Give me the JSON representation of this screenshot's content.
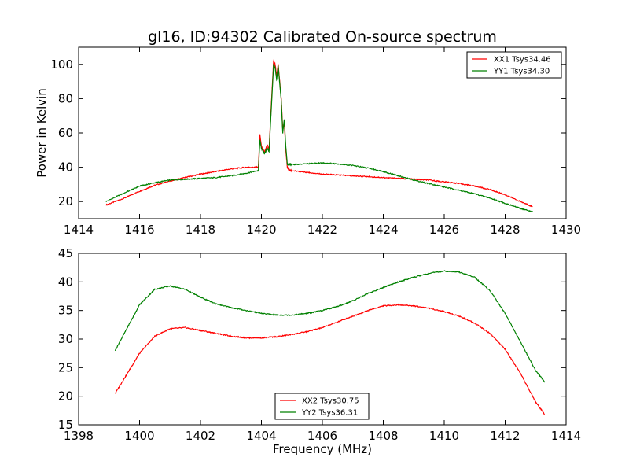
{
  "chart_data": [
    {
      "type": "line",
      "title": "gl16, ID:94302 Calibrated On-source spectrum",
      "xlabel": "",
      "ylabel": "Power in Kelvin",
      "xlim": [
        1414,
        1430
      ],
      "ylim": [
        10,
        110
      ],
      "xticks": [
        "1414",
        "1416",
        "1418",
        "1420",
        "1422",
        "1424",
        "1426",
        "1428",
        "1430"
      ],
      "yticks": [
        "20",
        "40",
        "60",
        "80",
        "100"
      ],
      "legend_position": "upper right",
      "series": [
        {
          "name": "XX1 Tsys34.46",
          "color": "#ff0000",
          "x": [
            1414.9,
            1415.5,
            1416,
            1416.5,
            1417,
            1417.5,
            1418,
            1418.5,
            1419,
            1419.5,
            1419.9,
            1419.95,
            1420.0,
            1420.1,
            1420.2,
            1420.25,
            1420.3,
            1420.4,
            1420.45,
            1420.5,
            1420.55,
            1420.6,
            1420.65,
            1420.7,
            1420.75,
            1420.8,
            1420.85,
            1420.9,
            1421,
            1421.5,
            1422,
            1422.5,
            1423,
            1423.5,
            1424,
            1424.5,
            1425,
            1425.5,
            1426,
            1426.5,
            1427,
            1427.5,
            1428,
            1428.5,
            1428.9
          ],
          "y": [
            18,
            22,
            26,
            29.5,
            32,
            34,
            36,
            37.5,
            39,
            40,
            40,
            59,
            52,
            49,
            53,
            50,
            68,
            102,
            100,
            93,
            100,
            90,
            80,
            62,
            66,
            50,
            40,
            38.5,
            38,
            37,
            36,
            35.5,
            35,
            34.5,
            34,
            33.5,
            33,
            32.5,
            31.5,
            30.5,
            29,
            27,
            24,
            20,
            17
          ]
        },
        {
          "name": "YY1 Tsys34.30",
          "color": "#008000",
          "x": [
            1414.9,
            1415.5,
            1416,
            1416.5,
            1417,
            1417.5,
            1418,
            1418.5,
            1419,
            1419.5,
            1419.9,
            1419.95,
            1420.0,
            1420.1,
            1420.2,
            1420.25,
            1420.3,
            1420.4,
            1420.45,
            1420.5,
            1420.55,
            1420.6,
            1420.65,
            1420.7,
            1420.75,
            1420.8,
            1420.85,
            1420.9,
            1421,
            1421.5,
            1422,
            1422.5,
            1423,
            1423.5,
            1424,
            1424.5,
            1425,
            1425.5,
            1426,
            1426.5,
            1427,
            1427.5,
            1428,
            1428.5,
            1428.9
          ],
          "y": [
            20,
            25,
            29,
            31,
            32.5,
            33,
            33.5,
            34,
            35,
            36.5,
            38,
            56,
            51,
            48,
            51,
            49,
            66,
            100,
            98,
            91,
            99,
            89,
            79,
            60,
            68,
            52,
            42,
            41.5,
            41.5,
            42,
            42.5,
            42,
            41,
            39.5,
            37.5,
            35,
            32.5,
            30.5,
            28.5,
            26.5,
            24.5,
            22,
            19,
            16,
            14
          ]
        }
      ]
    },
    {
      "type": "line",
      "title": "",
      "xlabel": "Frequency (MHz)",
      "ylabel": "",
      "xlim": [
        1398,
        1414
      ],
      "ylim": [
        15,
        45
      ],
      "xticks": [
        "1398",
        "1400",
        "1402",
        "1404",
        "1406",
        "1408",
        "1410",
        "1412",
        "1414"
      ],
      "yticks": [
        "15",
        "20",
        "25",
        "30",
        "35",
        "40",
        "45"
      ],
      "legend_position": "lower center",
      "series": [
        {
          "name": "XX2 Tsys30.75",
          "color": "#ff0000",
          "x": [
            1399.2,
            1399.6,
            1400,
            1400.5,
            1401,
            1401.5,
            1402,
            1402.5,
            1403,
            1403.5,
            1404,
            1404.5,
            1405,
            1405.5,
            1406,
            1406.5,
            1407,
            1407.5,
            1408,
            1408.5,
            1409,
            1409.5,
            1410,
            1410.5,
            1411,
            1411.5,
            1412,
            1412.5,
            1413,
            1413.3
          ],
          "y": [
            20.5,
            24,
            27.5,
            30.5,
            31.8,
            32,
            31.5,
            31,
            30.5,
            30.2,
            30.2,
            30.4,
            30.8,
            31.3,
            32,
            33,
            34,
            35,
            35.8,
            36,
            35.8,
            35.4,
            34.8,
            34,
            32.8,
            31,
            28.2,
            24,
            19,
            16.8
          ]
        },
        {
          "name": "YY2 Tsys36.31",
          "color": "#008000",
          "x": [
            1399.2,
            1399.6,
            1400,
            1400.5,
            1401,
            1401.5,
            1402,
            1402.5,
            1403,
            1403.5,
            1404,
            1404.5,
            1405,
            1405.5,
            1406,
            1406.5,
            1407,
            1407.5,
            1408,
            1408.5,
            1409,
            1409.5,
            1410,
            1410.5,
            1411,
            1411.5,
            1412,
            1412.5,
            1413,
            1413.3
          ],
          "y": [
            28,
            32,
            36,
            38.7,
            39.3,
            38.7,
            37.3,
            36.2,
            35.5,
            35,
            34.5,
            34.2,
            34.2,
            34.5,
            35,
            35.7,
            36.7,
            38,
            39,
            40,
            40.8,
            41.5,
            41.9,
            41.7,
            40.8,
            38.5,
            34.5,
            29.5,
            24.5,
            22.5
          ]
        }
      ]
    }
  ]
}
